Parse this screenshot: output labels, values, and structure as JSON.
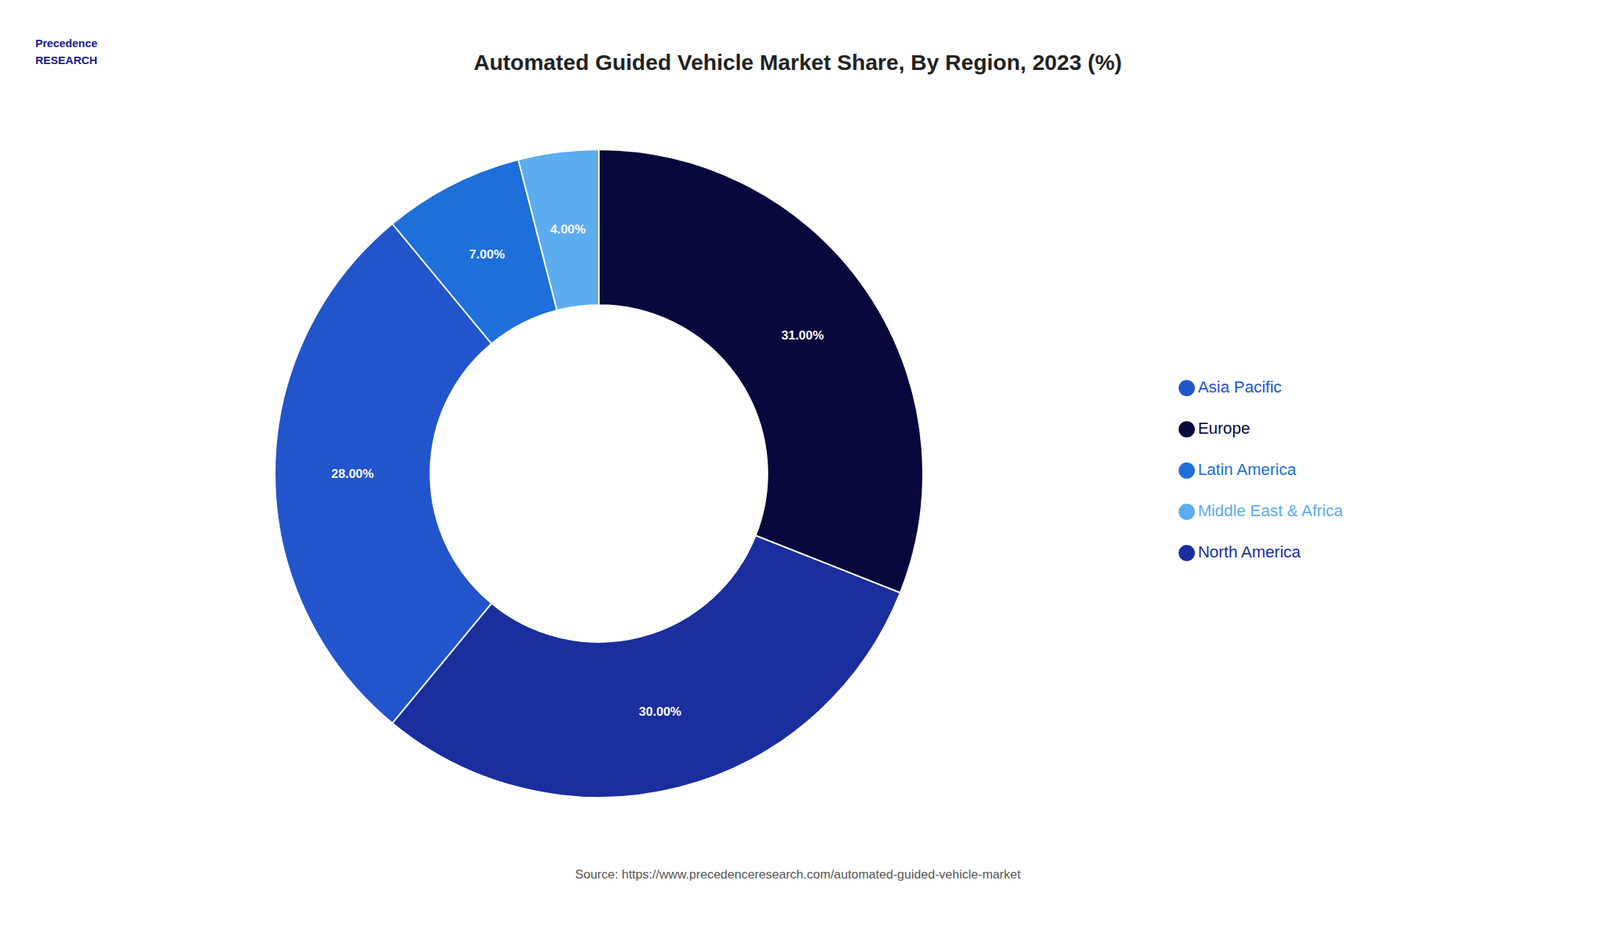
{
  "chart_data": {
    "type": "pie",
    "title": "Automated Guided Vehicle Market Share, By Region, 2023 (%)",
    "categories": [
      "Europe",
      "North America",
      "Asia Pacific",
      "Latin America",
      "Middle East & Africa"
    ],
    "values": [
      31.0,
      30.0,
      28.0,
      7.0,
      4.0
    ],
    "value_labels": [
      "31.00%",
      "30.00%",
      "28.00%",
      "7.00%",
      "4.00%"
    ],
    "colors": [
      "#08083d",
      "#1a2e9e",
      "#2255cc",
      "#1e6fd9",
      "#5cacf0"
    ],
    "data_labels": true,
    "legend": "right",
    "annotations": [
      "Precedence\nRESEARCH",
      "Source: https://www.precedenceresearch.com/automated-guided-vehicle-market"
    ]
  }
}
